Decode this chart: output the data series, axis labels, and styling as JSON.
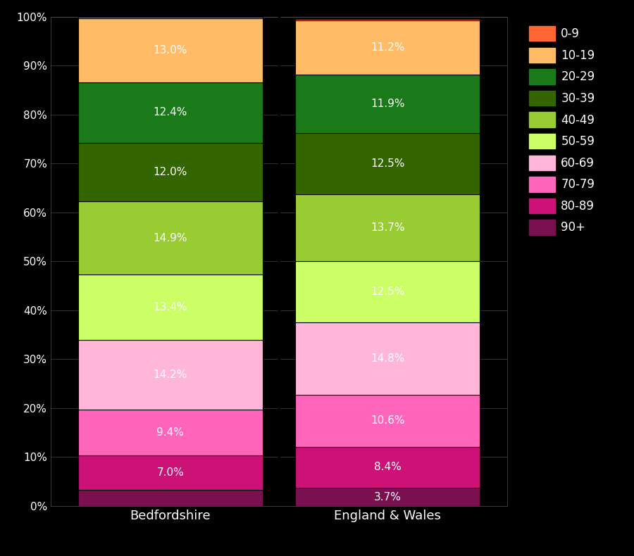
{
  "categories": [
    "Bedfordshire",
    "England & Wales"
  ],
  "age_groups_bottom_to_top": [
    "90+",
    "80-89",
    "70-79",
    "60-69",
    "50-59",
    "40-49",
    "30-39",
    "20-29",
    "10-19",
    "0-9"
  ],
  "colors_bottom_to_top": [
    "#7B1050",
    "#CC1177",
    "#FF66BB",
    "#FFB6D9",
    "#CCFF66",
    "#99CC33",
    "#336600",
    "#1A7A1A",
    "#FFBB66",
    "#FF6633"
  ],
  "bedfordshire_bottom_to_top": [
    3.3,
    7.0,
    9.4,
    14.2,
    13.4,
    14.9,
    12.0,
    12.4,
    13.0,
    0.4
  ],
  "england_wales_bottom_to_top": [
    3.7,
    8.4,
    10.6,
    14.8,
    12.5,
    13.7,
    12.5,
    11.9,
    11.2,
    0.2
  ],
  "bedfordshire_labels": [
    "",
    "7.0%",
    "9.4%",
    "14.2%",
    "13.4%",
    "14.9%",
    "12.0%",
    "12.4%",
    "13.0%",
    ""
  ],
  "england_wales_labels": [
    "3.7%",
    "8.4%",
    "10.6%",
    "14.8%",
    "12.5%",
    "13.7%",
    "12.5%",
    "11.9%",
    "11.2%",
    ""
  ],
  "legend_labels_top_to_bottom": [
    "0-9",
    "10-19",
    "20-29",
    "30-39",
    "40-49",
    "50-59",
    "60-69",
    "70-79",
    "80-89",
    "90+"
  ],
  "legend_colors_top_to_bottom": [
    "#FF6633",
    "#FFBB66",
    "#1A7A1A",
    "#336600",
    "#99CC33",
    "#CCFF66",
    "#FFB6D9",
    "#FF66BB",
    "#CC1177",
    "#7B1050"
  ],
  "background_color": "#000000",
  "plot_area_color": "#111111",
  "x_positions": [
    0,
    1
  ],
  "bar_width": 0.85,
  "ylim": [
    0,
    100
  ],
  "yticks": [
    0,
    10,
    20,
    30,
    40,
    50,
    60,
    70,
    80,
    90,
    100
  ],
  "label_fontsize": 11,
  "tick_fontsize": 11,
  "xticklabel_fontsize": 13
}
